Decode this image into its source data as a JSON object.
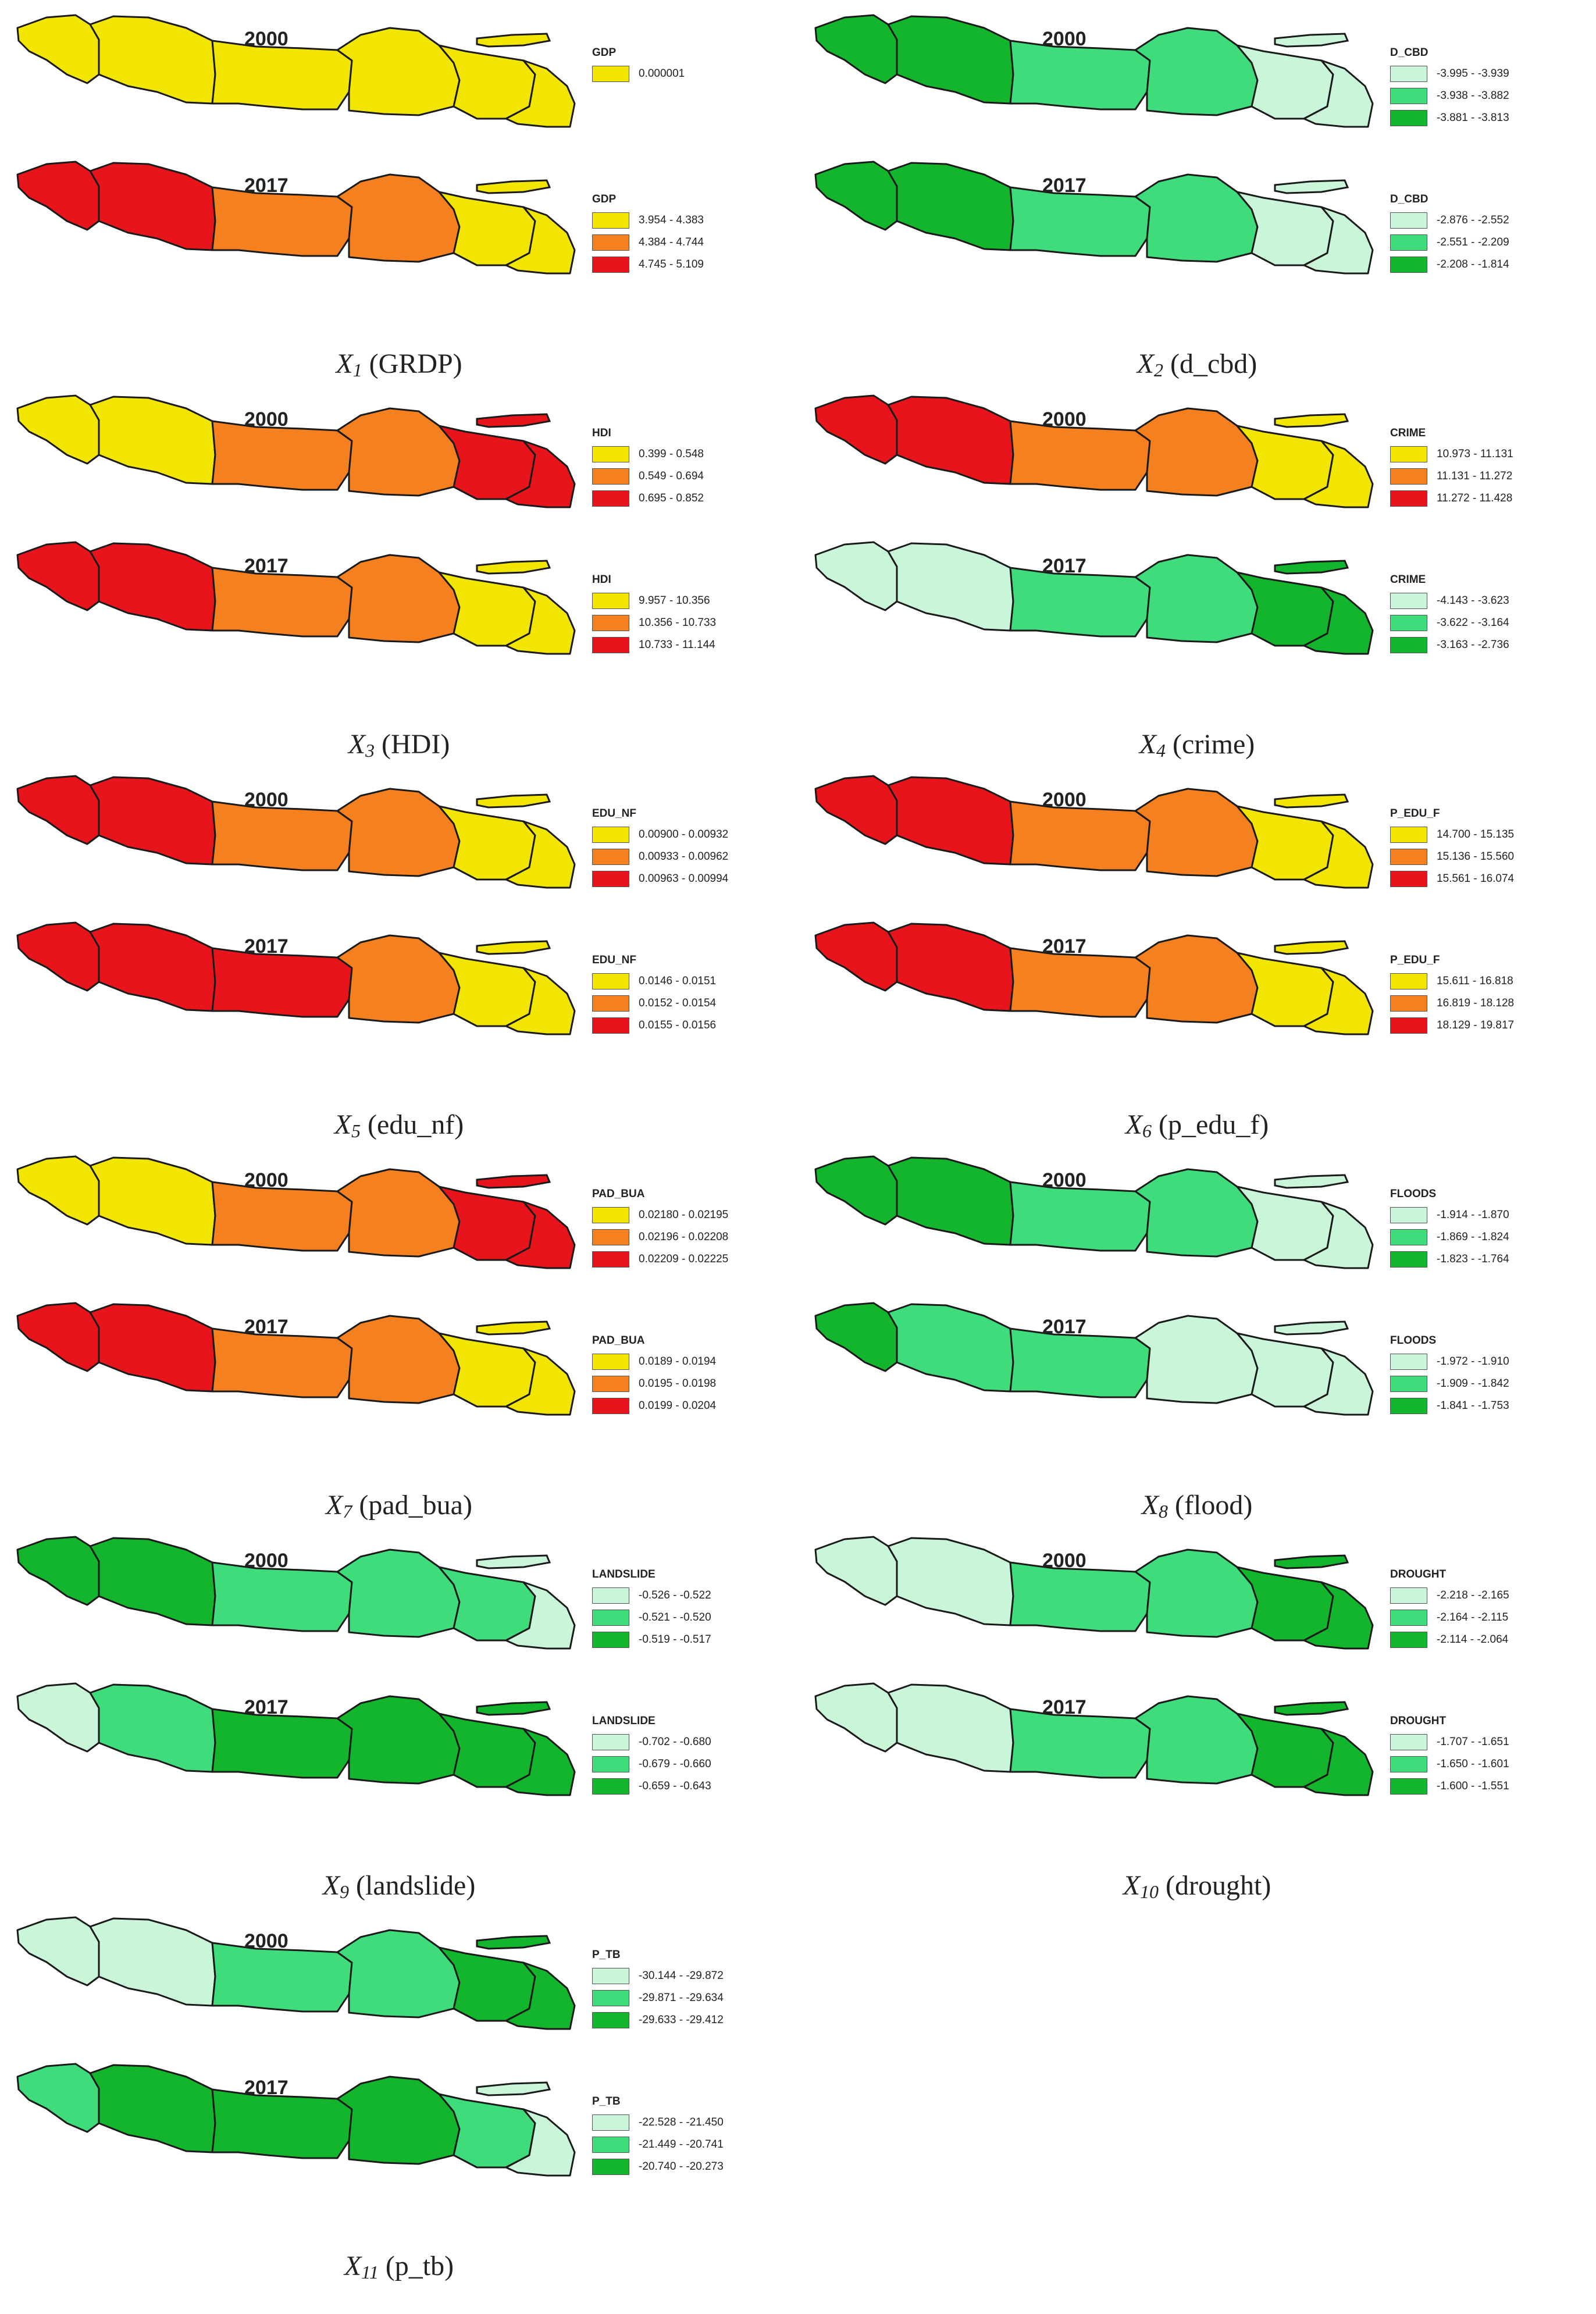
{
  "years": [
    "2000",
    "2017"
  ],
  "colors": {
    "yellow": "#f2e600",
    "orange": "#f4801f",
    "red": "#e8141b",
    "light_green": "#c9f5d9",
    "mid_green": "#3fdc7c",
    "dark_green": "#13b52c"
  },
  "panels": [
    {
      "caption": {
        "var": "X",
        "sub": "1",
        "label": "(GRDP)"
      },
      "maps": [
        {
          "year": "2000",
          "legend_title": "GDP",
          "fills": [
            "yellow",
            "yellow",
            "yellow",
            "yellow",
            "yellow",
            "yellow"
          ],
          "legend": [
            {
              "color": "yellow",
              "range": "0.000001"
            }
          ]
        },
        {
          "year": "2017",
          "legend_title": "GDP",
          "fills": [
            "red",
            "red",
            "orange",
            "orange",
            "yellow",
            "yellow"
          ],
          "legend": [
            {
              "color": "yellow",
              "range": "3.954 - 4.383"
            },
            {
              "color": "orange",
              "range": "4.384 - 4.744"
            },
            {
              "color": "red",
              "range": "4.745 - 5.109"
            }
          ]
        }
      ]
    },
    {
      "caption": {
        "var": "X",
        "sub": "2",
        "label": "(d_cbd)"
      },
      "maps": [
        {
          "year": "2000",
          "legend_title": "D_CBD",
          "fills": [
            "dark_green",
            "dark_green",
            "mid_green",
            "mid_green",
            "light_green",
            "light_green"
          ],
          "legend": [
            {
              "color": "light_green",
              "range": "-3.995 - -3.939"
            },
            {
              "color": "mid_green",
              "range": "-3.938 - -3.882"
            },
            {
              "color": "dark_green",
              "range": "-3.881 - -3.813"
            }
          ]
        },
        {
          "year": "2017",
          "legend_title": "D_CBD",
          "fills": [
            "dark_green",
            "dark_green",
            "mid_green",
            "mid_green",
            "light_green",
            "light_green"
          ],
          "legend": [
            {
              "color": "light_green",
              "range": "-2.876 - -2.552"
            },
            {
              "color": "mid_green",
              "range": "-2.551 - -2.209"
            },
            {
              "color": "dark_green",
              "range": "-2.208 - -1.814"
            }
          ]
        }
      ]
    },
    {
      "caption": {
        "var": "X",
        "sub": "3",
        "label": "(HDI)"
      },
      "maps": [
        {
          "year": "2000",
          "legend_title": "HDI",
          "fills": [
            "yellow",
            "yellow",
            "orange",
            "orange",
            "red",
            "red"
          ],
          "legend": [
            {
              "color": "yellow",
              "range": "0.399 - 0.548"
            },
            {
              "color": "orange",
              "range": "0.549 - 0.694"
            },
            {
              "color": "red",
              "range": "0.695 - 0.852"
            }
          ]
        },
        {
          "year": "2017",
          "legend_title": "HDI",
          "fills": [
            "red",
            "red",
            "orange",
            "orange",
            "yellow",
            "yellow"
          ],
          "legend": [
            {
              "color": "yellow",
              "range": "9.957 - 10.356"
            },
            {
              "color": "orange",
              "range": "10.356 - 10.733"
            },
            {
              "color": "red",
              "range": "10.733 - 11.144"
            }
          ]
        }
      ]
    },
    {
      "caption": {
        "var": "X",
        "sub": "4",
        "label": "(crime)"
      },
      "maps": [
        {
          "year": "2000",
          "legend_title": "CRIME",
          "fills": [
            "red",
            "red",
            "orange",
            "orange",
            "yellow",
            "yellow"
          ],
          "legend": [
            {
              "color": "yellow",
              "range": "10.973 - 11.131"
            },
            {
              "color": "orange",
              "range": "11.131 - 11.272"
            },
            {
              "color": "red",
              "range": "11.272 - 11.428"
            }
          ]
        },
        {
          "year": "2017",
          "legend_title": "CRIME",
          "fills": [
            "light_green",
            "light_green",
            "mid_green",
            "mid_green",
            "dark_green",
            "dark_green"
          ],
          "legend": [
            {
              "color": "light_green",
              "range": "-4.143 - -3.623"
            },
            {
              "color": "mid_green",
              "range": "-3.622 - -3.164"
            },
            {
              "color": "dark_green",
              "range": "-3.163 - -2.736"
            }
          ]
        }
      ]
    },
    {
      "caption": {
        "var": "X",
        "sub": "5",
        "label": "(edu_nf)"
      },
      "maps": [
        {
          "year": "2000",
          "legend_title": "EDU_NF",
          "fills": [
            "red",
            "red",
            "orange",
            "orange",
            "yellow",
            "yellow"
          ],
          "legend": [
            {
              "color": "yellow",
              "range": "0.00900 - 0.00932"
            },
            {
              "color": "orange",
              "range": "0.00933 - 0.00962"
            },
            {
              "color": "red",
              "range": "0.00963 - 0.00994"
            }
          ]
        },
        {
          "year": "2017",
          "legend_title": "EDU_NF",
          "fills": [
            "red",
            "red",
            "red",
            "orange",
            "yellow",
            "yellow"
          ],
          "legend": [
            {
              "color": "yellow",
              "range": "0.0146 - 0.0151"
            },
            {
              "color": "orange",
              "range": "0.0152 - 0.0154"
            },
            {
              "color": "red",
              "range": "0.0155 - 0.0156"
            }
          ]
        }
      ]
    },
    {
      "caption": {
        "var": "X",
        "sub": "6",
        "label": "(p_edu_f)"
      },
      "maps": [
        {
          "year": "2000",
          "legend_title": "P_EDU_F",
          "fills": [
            "red",
            "red",
            "orange",
            "orange",
            "yellow",
            "yellow"
          ],
          "legend": [
            {
              "color": "yellow",
              "range": "14.700 - 15.135"
            },
            {
              "color": "orange",
              "range": "15.136 - 15.560"
            },
            {
              "color": "red",
              "range": "15.561 - 16.074"
            }
          ]
        },
        {
          "year": "2017",
          "legend_title": "P_EDU_F",
          "fills": [
            "red",
            "red",
            "orange",
            "orange",
            "yellow",
            "yellow"
          ],
          "legend": [
            {
              "color": "yellow",
              "range": "15.611 - 16.818"
            },
            {
              "color": "orange",
              "range": "16.819 - 18.128"
            },
            {
              "color": "red",
              "range": "18.129 - 19.817"
            }
          ]
        }
      ]
    },
    {
      "caption": {
        "var": "X",
        "sub": "7",
        "label": "(pad_bua)"
      },
      "maps": [
        {
          "year": "2000",
          "legend_title": "PAD_BUA",
          "fills": [
            "yellow",
            "yellow",
            "orange",
            "orange",
            "red",
            "red"
          ],
          "legend": [
            {
              "color": "yellow",
              "range": "0.02180 - 0.02195"
            },
            {
              "color": "orange",
              "range": "0.02196 - 0.02208"
            },
            {
              "color": "red",
              "range": "0.02209 - 0.02225"
            }
          ]
        },
        {
          "year": "2017",
          "legend_title": "PAD_BUA",
          "fills": [
            "red",
            "red",
            "orange",
            "orange",
            "yellow",
            "yellow"
          ],
          "legend": [
            {
              "color": "yellow",
              "range": "0.0189 - 0.0194"
            },
            {
              "color": "orange",
              "range": "0.0195 - 0.0198"
            },
            {
              "color": "red",
              "range": "0.0199 - 0.0204"
            }
          ]
        }
      ]
    },
    {
      "caption": {
        "var": "X",
        "sub": "8",
        "label": "(flood)"
      },
      "maps": [
        {
          "year": "2000",
          "legend_title": "FLOODS",
          "fills": [
            "dark_green",
            "dark_green",
            "mid_green",
            "mid_green",
            "light_green",
            "light_green"
          ],
          "legend": [
            {
              "color": "light_green",
              "range": "-1.914 - -1.870"
            },
            {
              "color": "mid_green",
              "range": "-1.869 - -1.824"
            },
            {
              "color": "dark_green",
              "range": "-1.823 - -1.764"
            }
          ]
        },
        {
          "year": "2017",
          "legend_title": "FLOODS",
          "fills": [
            "dark_green",
            "mid_green",
            "mid_green",
            "light_green",
            "light_green",
            "light_green"
          ],
          "legend": [
            {
              "color": "light_green",
              "range": "-1.972 - -1.910"
            },
            {
              "color": "mid_green",
              "range": "-1.909 - -1.842"
            },
            {
              "color": "dark_green",
              "range": "-1.841 - -1.753"
            }
          ]
        }
      ]
    },
    {
      "caption": {
        "var": "X",
        "sub": "9",
        "label": "(landslide)"
      },
      "maps": [
        {
          "year": "2000",
          "legend_title": "LANDSLIDE",
          "fills": [
            "dark_green",
            "dark_green",
            "mid_green",
            "mid_green",
            "mid_green",
            "light_green"
          ],
          "legend": [
            {
              "color": "light_green",
              "range": "-0.526 - -0.522"
            },
            {
              "color": "mid_green",
              "range": "-0.521 - -0.520"
            },
            {
              "color": "dark_green",
              "range": "-0.519 - -0.517"
            }
          ]
        },
        {
          "year": "2017",
          "legend_title": "LANDSLIDE",
          "fills": [
            "light_green",
            "mid_green",
            "dark_green",
            "dark_green",
            "dark_green",
            "dark_green"
          ],
          "legend": [
            {
              "color": "light_green",
              "range": "-0.702 - -0.680"
            },
            {
              "color": "mid_green",
              "range": "-0.679 - -0.660"
            },
            {
              "color": "dark_green",
              "range": "-0.659 - -0.643"
            }
          ]
        }
      ]
    },
    {
      "caption": {
        "var": "X",
        "sub": "10",
        "label": "(drought)"
      },
      "maps": [
        {
          "year": "2000",
          "legend_title": "DROUGHT",
          "fills": [
            "light_green",
            "light_green",
            "mid_green",
            "mid_green",
            "dark_green",
            "dark_green"
          ],
          "legend": [
            {
              "color": "light_green",
              "range": "-2.218 - -2.165"
            },
            {
              "color": "mid_green",
              "range": "-2.164 - -2.115"
            },
            {
              "color": "dark_green",
              "range": "-2.114 - -2.064"
            }
          ]
        },
        {
          "year": "2017",
          "legend_title": "DROUGHT",
          "fills": [
            "light_green",
            "light_green",
            "mid_green",
            "mid_green",
            "dark_green",
            "dark_green"
          ],
          "legend": [
            {
              "color": "light_green",
              "range": "-1.707 - -1.651"
            },
            {
              "color": "mid_green",
              "range": "-1.650 - -1.601"
            },
            {
              "color": "dark_green",
              "range": "-1.600 - -1.551"
            }
          ]
        }
      ]
    },
    {
      "caption": {
        "var": "X",
        "sub": "11",
        "label": "(p_tb)"
      },
      "maps": [
        {
          "year": "2000",
          "legend_title": "P_TB",
          "fills": [
            "light_green",
            "light_green",
            "mid_green",
            "mid_green",
            "dark_green",
            "dark_green"
          ],
          "legend": [
            {
              "color": "light_green",
              "range": "-30.144 - -29.872"
            },
            {
              "color": "mid_green",
              "range": "-29.871 - -29.634"
            },
            {
              "color": "dark_green",
              "range": "-29.633 - -29.412"
            }
          ]
        },
        {
          "year": "2017",
          "legend_title": "P_TB",
          "fills": [
            "mid_green",
            "dark_green",
            "dark_green",
            "dark_green",
            "mid_green",
            "light_green"
          ],
          "legend": [
            {
              "color": "light_green",
              "range": "-22.528 - -21.450"
            },
            {
              "color": "mid_green",
              "range": "-21.449 - -20.741"
            },
            {
              "color": "dark_green",
              "range": "-20.740 - -20.273"
            }
          ]
        }
      ]
    }
  ]
}
